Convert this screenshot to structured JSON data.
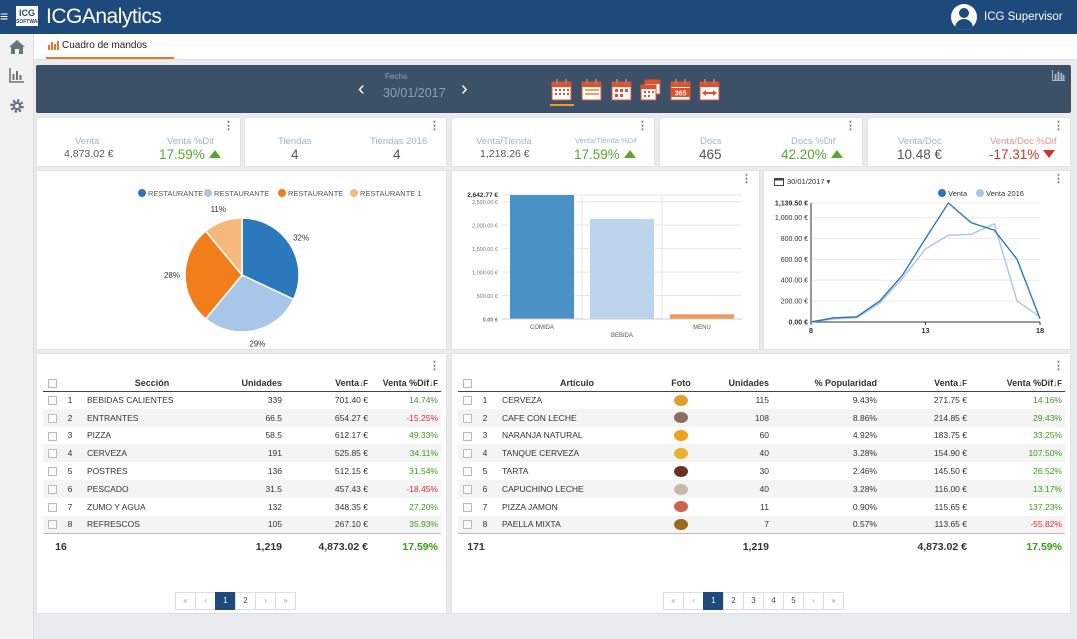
{
  "app": {
    "brand": "ICGAnalytics",
    "logo_text": "ICG",
    "logo_subtext": "SOFTWARE",
    "user": "ICG Supervisor"
  },
  "tab": {
    "label": "Cuadro de mandos"
  },
  "date": {
    "label": "Fecha",
    "value": "30/01/2017"
  },
  "kpis": {
    "venta": {
      "label": "Venta",
      "value": "4,873.02 €",
      "dif_label": "Venta %Dif",
      "dif": "17.59%"
    },
    "tiendas": {
      "label": "Tiendas",
      "value": "4",
      "label2": "Tiendas 2016",
      "value2": "4"
    },
    "venta_tienda": {
      "label": "Venta/Tienda",
      "value": "1,218.26 €",
      "dif_label": "Venta/Tienda %Dif",
      "dif": "17.59%"
    },
    "docs": {
      "label": "Docs",
      "value": "465",
      "dif_label": "Docs %Dif",
      "dif": "42.20%"
    },
    "venta_doc": {
      "label": "Venta/Doc",
      "value": "10.48 €",
      "dif_label": "Venta/Doc %Dif",
      "dif": "-17.31%"
    }
  },
  "chart_data": [
    {
      "type": "pie",
      "legend_position": "top",
      "series": [
        {
          "name": "RESTAURANTE",
          "value": 32,
          "label": "32%",
          "color": "#2b78bd"
        },
        {
          "name": "RESTAURANTE",
          "value": 29,
          "label": "29%",
          "color": "#a8c6e8"
        },
        {
          "name": "RESTAURANTE",
          "value": 28,
          "label": "28%",
          "color": "#f27e1b"
        },
        {
          "name": "RESTAURANTE 1",
          "value": 11,
          "label": "11%",
          "color": "#f6b97b"
        }
      ]
    },
    {
      "type": "bar",
      "categories": [
        "COMIDA",
        "BEBIDA",
        "MENU"
      ],
      "values": [
        2642.77,
        2130,
        100
      ],
      "colors": [
        "#4a91c8",
        "#bcd4ec",
        "#f09a5c"
      ],
      "ylim": [
        0,
        2642.77
      ],
      "ytick_labels": [
        "2,642.77 €",
        "2,500.00 €",
        "2,000.00 €",
        "1,500.00 €",
        "1,000.00 €",
        "500.00 €",
        "0.00 €"
      ],
      "ytick_values": [
        2642.77,
        2500,
        2000,
        1500,
        1000,
        500,
        0
      ],
      "grid": true
    },
    {
      "type": "line",
      "date_filter": "30/01/2017",
      "legend_position": "top",
      "x": [
        8,
        9,
        10,
        11,
        12,
        13,
        14,
        15,
        16,
        17,
        18
      ],
      "xtick_labels": [
        "8",
        "13",
        "18"
      ],
      "xtick_values": [
        8,
        13,
        18
      ],
      "ylim": [
        0,
        1139.5
      ],
      "ytick_labels": [
        "1,139.50 €",
        "1,000.00 €",
        "800.00 €",
        "600.00 €",
        "400.00 €",
        "200.00 €",
        "0.00 €"
      ],
      "ytick_values": [
        1139.5,
        1000,
        800,
        600,
        400,
        200,
        0
      ],
      "series": [
        {
          "name": "Venta",
          "color": "#2b78bd",
          "values": [
            0,
            40,
            50,
            200,
            450,
            800,
            1139.5,
            950,
            880,
            600,
            30
          ]
        },
        {
          "name": "Venta 2016",
          "color": "#a8c6e8",
          "values": [
            0,
            30,
            40,
            180,
            420,
            700,
            830,
            840,
            940,
            200,
            50
          ]
        }
      ]
    }
  ],
  "table_sections": {
    "headers": {
      "section": "Sección",
      "units": "Unidades",
      "sales": "Venta",
      "dif": "Venta %Dif"
    },
    "rows": [
      {
        "n": "1",
        "name": "BEBIDAS CALIENTES",
        "units": "339",
        "sales": "701.40 €",
        "dif": "14.74%",
        "pos": true
      },
      {
        "n": "2",
        "name": "ENTRANTES",
        "units": "66.5",
        "sales": "654.27 €",
        "dif": "-15.25%",
        "pos": false
      },
      {
        "n": "3",
        "name": "PIZZA",
        "units": "58.5",
        "sales": "612.17 €",
        "dif": "49.33%",
        "pos": true
      },
      {
        "n": "4",
        "name": "CERVEZA",
        "units": "191",
        "sales": "525.85 €",
        "dif": "34.11%",
        "pos": true
      },
      {
        "n": "5",
        "name": "POSTRES",
        "units": "136",
        "sales": "512.15 €",
        "dif": "31.54%",
        "pos": true
      },
      {
        "n": "6",
        "name": "PESCADO",
        "units": "31.5",
        "sales": "457.43 €",
        "dif": "-18.45%",
        "pos": false
      },
      {
        "n": "7",
        "name": "ZUMO Y AGUA",
        "units": "132",
        "sales": "348.35 €",
        "dif": "27.20%",
        "pos": true
      },
      {
        "n": "8",
        "name": "REFRESCOS",
        "units": "105",
        "sales": "267.10 €",
        "dif": "35.93%",
        "pos": true
      }
    ],
    "totals": {
      "count": "16",
      "units": "1,219",
      "sales": "4,873.02 €",
      "dif": "17.59%"
    },
    "pages": [
      "«",
      "‹",
      "1",
      "2",
      "›",
      "»"
    ],
    "active_page": "1"
  },
  "table_articles": {
    "headers": {
      "article": "Artículo",
      "photo": "Foto",
      "units": "Unidades",
      "popularity": "% Popularidad",
      "sales": "Venta",
      "dif": "Venta %Dif"
    },
    "rows": [
      {
        "n": "1",
        "name": "CERVEZA",
        "photo_color": "#e0a030",
        "units": "115",
        "pop": "9.43%",
        "sales": "271.75 €",
        "dif": "14.16%",
        "pos": true
      },
      {
        "n": "2",
        "name": "CAFE CON LECHE",
        "photo_color": "#8a7060",
        "units": "108",
        "pop": "8.86%",
        "sales": "214.85 €",
        "dif": "29.43%",
        "pos": true
      },
      {
        "n": "3",
        "name": "NARANJA NATURAL",
        "photo_color": "#f0a020",
        "units": "60",
        "pop": "4.92%",
        "sales": "183.75 €",
        "dif": "33.25%",
        "pos": true
      },
      {
        "n": "4",
        "name": "TANQUE CERVEZA",
        "photo_color": "#e8b030",
        "units": "40",
        "pop": "3.28%",
        "sales": "154.90 €",
        "dif": "107.50%",
        "pos": true
      },
      {
        "n": "5",
        "name": "TARTA",
        "photo_color": "#6a3020",
        "units": "30",
        "pop": "2.46%",
        "sales": "145.50 €",
        "dif": "26.52%",
        "pos": true
      },
      {
        "n": "6",
        "name": "CAPUCHINO LECHE",
        "photo_color": "#c8b8a8",
        "units": "40",
        "pop": "3.28%",
        "sales": "116.00 €",
        "dif": "13.17%",
        "pos": true
      },
      {
        "n": "7",
        "name": "PIZZA JAMON",
        "photo_color": "#d06050",
        "units": "11",
        "pop": "0.90%",
        "sales": "115.65 €",
        "dif": "137.23%",
        "pos": true
      },
      {
        "n": "8",
        "name": "PAELLA MIXTA",
        "photo_color": "#9a6a20",
        "units": "7",
        "pop": "0.57%",
        "sales": "113.65 €",
        "dif": "-55.82%",
        "pos": false
      }
    ],
    "totals": {
      "count": "171",
      "units": "1,219",
      "sales": "4,873.02 €",
      "dif": "17.59%"
    },
    "pages": [
      "«",
      "‹",
      "1",
      "2",
      "3",
      "4",
      "5",
      "›",
      "»"
    ],
    "active_page": "1"
  }
}
